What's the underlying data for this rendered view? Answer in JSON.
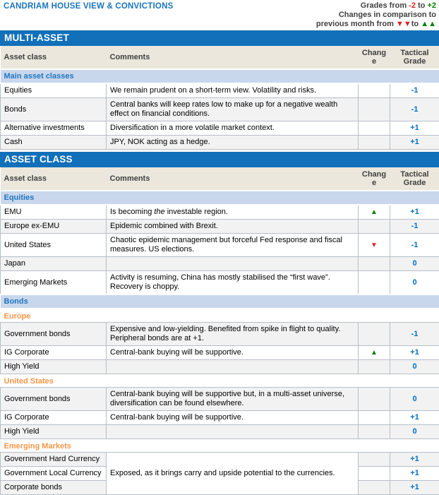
{
  "header": {
    "title": "CANDRIAM HOUSE VIEW & CONVICTIONS",
    "legend": {
      "grades_prefix": "Grades from ",
      "grade_min": "-2",
      "grades_mid": " to ",
      "grade_max": "+2",
      "line2": "Changes in comparison to",
      "line3_prefix": "previous month from ",
      "down_arrows": "▼▼",
      "line3_mid": "to ",
      "up_arrows": "▲▲"
    }
  },
  "column_headers": {
    "asset_class": "Asset class",
    "comments": "Comments",
    "change": "Change",
    "tactical_grade": "Tactical Grade"
  },
  "icons": {
    "up": "▲",
    "down": "▼"
  },
  "colors": {
    "banner_blue": "#1170B9",
    "title_blue": "#1B75BC",
    "subheader_blue_bg": "#C9D7EC",
    "subheader_blue_text": "#2176C0",
    "orange": "#F79647",
    "grade_blue": "#0070C0",
    "green": "#008000",
    "red": "#E31E24",
    "header_beige": "#EBE7DC",
    "row_shade": "#F2F2F2"
  },
  "tables": [
    {
      "banner": "MULTI-ASSET",
      "groups": [
        {
          "type": "blue",
          "label": "Main asset classes",
          "rows": [
            {
              "asset": "Equities",
              "comment": "We remain prudent on a short-term view. Volatility and risks.",
              "change": "",
              "grade": "-1"
            },
            {
              "asset": "Bonds",
              "comment": "Central banks will keep rates low to make up for a negative wealth effect on financial conditions.",
              "change": "",
              "grade": "-1"
            },
            {
              "asset": "Alternative investments",
              "comment": "Diversification in a more volatile market context.",
              "change": "",
              "grade": "+1"
            },
            {
              "asset": "Cash",
              "comment": "JPY, NOK acting as a hedge.",
              "change": "",
              "grade": "+1"
            }
          ]
        }
      ]
    },
    {
      "banner": "ASSET CLASS",
      "groups": [
        {
          "type": "blue",
          "label": "Equities",
          "rows": [
            {
              "asset": "EMU",
              "comment_before": "Is becoming ",
              "comment_em": "the",
              "comment_after": " investable region.",
              "change": "up",
              "grade": "+1"
            },
            {
              "asset": "Europe ex-EMU",
              "comment": "Epidemic combined with Brexit.",
              "change": "",
              "grade": "-1"
            },
            {
              "asset": "United States",
              "comment": "Chaotic epidemic management but forceful Fed response and fiscal measures. US elections.",
              "change": "down",
              "grade": "-1"
            },
            {
              "asset": "Japan",
              "comment": "",
              "change": "",
              "grade": "0"
            },
            {
              "asset": "Emerging Markets",
              "comment": "Activity is resuming, China has mostly stabilised the “first wave”. Recovery is choppy.",
              "change": "",
              "grade": "0"
            }
          ]
        },
        {
          "type": "blue",
          "label": "Bonds",
          "rows": []
        },
        {
          "type": "orange",
          "label": "Europe",
          "rows": [
            {
              "asset": "Government bonds",
              "comment": "Expensive and low-yielding. Benefited from spike in flight to quality. Peripheral bonds are at +1.",
              "change": "",
              "grade": "-1"
            },
            {
              "asset": "IG Corporate",
              "comment": "Central-bank buying will be supportive.",
              "change": "up",
              "grade": "+1"
            },
            {
              "asset": "High Yield",
              "comment": "",
              "change": "",
              "grade": "0"
            }
          ]
        },
        {
          "type": "orange",
          "label": "United States",
          "rows": [
            {
              "asset": "Government bonds",
              "comment": "Central-bank buying will be supportive but, in a multi-asset universe, diversification can be found elsewhere.",
              "change": "",
              "grade": "0"
            },
            {
              "asset": "IG Corporate",
              "comment": "Central-bank buying will be supportive.",
              "change": "",
              "grade": "+1"
            },
            {
              "asset": "High Yield",
              "comment": "",
              "change": "",
              "grade": "0"
            }
          ]
        },
        {
          "type": "orange",
          "label": "Emerging Markets",
          "rows": [
            {
              "asset": "Government Hard Currency",
              "comment": "Exposed, as it brings carry and upside potential to the currencies.",
              "comment_rowspan": 3,
              "change": "",
              "grade": "+1"
            },
            {
              "asset": "Government Local Currency",
              "comment": null,
              "change": "",
              "grade": "+1"
            },
            {
              "asset": "Corporate bonds",
              "comment": null,
              "change": "",
              "grade": "+1"
            }
          ]
        }
      ]
    }
  ]
}
